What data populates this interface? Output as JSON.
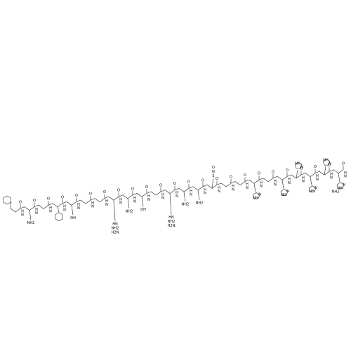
{
  "molecule": {
    "residues": [
      {
        "o": "O",
        "h": "H",
        "n": "N",
        "side": []
      },
      {
        "o": "O",
        "h": "H",
        "n": "N",
        "side": [
          "NH2"
        ]
      },
      {
        "o": "O",
        "h": "H",
        "n": "N",
        "side": []
      },
      {
        "o": "O",
        "h": "H",
        "n": "N",
        "side": []
      },
      {
        "o": "O",
        "h": "H",
        "n": "N",
        "side": [
          "OH"
        ]
      },
      {
        "o": "O",
        "h": "H",
        "n": "N",
        "side": []
      },
      {
        "o": "O",
        "h": "H",
        "n": "N",
        "side": []
      },
      {
        "o": "O",
        "h": "H",
        "n": "N",
        "side": [
          "HN",
          "NH2",
          "H2N"
        ]
      },
      {
        "o": "O",
        "h": "H",
        "n": "N",
        "side": [
          "NH2"
        ]
      },
      {
        "o": "O",
        "h": "H",
        "n": "N",
        "side": [
          "OH"
        ]
      },
      {
        "o": "O",
        "h": "H",
        "n": "N",
        "side": []
      },
      {
        "o": "O",
        "h": "H",
        "n": "N",
        "side": [
          "HN",
          "NH2",
          "H2N"
        ]
      },
      {
        "o": "O",
        "h": "H",
        "n": "N",
        "side": [
          "NH2"
        ]
      },
      {
        "o": "O",
        "h": "H",
        "n": "N",
        "side": [
          "NH2"
        ]
      },
      {
        "o": "O",
        "h": "H",
        "n": "N",
        "side": [
          "S",
          "N",
          "O"
        ]
      },
      {
        "o": "O",
        "h": "H",
        "n": "N",
        "side": []
      },
      {
        "o": "O",
        "h": "H",
        "n": "N",
        "side": []
      },
      {
        "o": "O",
        "h": "H",
        "n": "N",
        "side": [
          "N",
          "NH"
        ]
      },
      {
        "o": "O",
        "h": "H",
        "n": "N",
        "side": []
      },
      {
        "o": "O",
        "h": "H",
        "n": "N",
        "side": [
          "N",
          "NH"
        ]
      },
      {
        "o": "O",
        "h": "H",
        "n": "N",
        "side": [
          "N",
          "NH"
        ]
      },
      {
        "o": "O",
        "h": "H",
        "n": "N",
        "side": [
          "N",
          "NH"
        ]
      },
      {
        "o": "O",
        "h": "H",
        "n": "N",
        "side": [
          "N",
          "NH"
        ]
      },
      {
        "o": "O",
        "h": "H",
        "n": "N",
        "side": [
          "N",
          "NH",
          "NH2"
        ]
      }
    ]
  }
}
